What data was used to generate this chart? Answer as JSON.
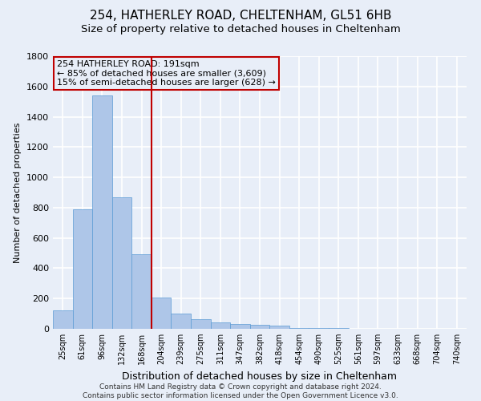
{
  "title1": "254, HATHERLEY ROAD, CHELTENHAM, GL51 6HB",
  "title2": "Size of property relative to detached houses in Cheltenham",
  "xlabel": "Distribution of detached houses by size in Cheltenham",
  "ylabel": "Number of detached properties",
  "categories": [
    "25sqm",
    "61sqm",
    "96sqm",
    "132sqm",
    "168sqm",
    "204sqm",
    "239sqm",
    "275sqm",
    "311sqm",
    "347sqm",
    "382sqm",
    "418sqm",
    "454sqm",
    "490sqm",
    "525sqm",
    "561sqm",
    "597sqm",
    "633sqm",
    "668sqm",
    "704sqm",
    "740sqm"
  ],
  "values": [
    120,
    790,
    1540,
    870,
    490,
    205,
    100,
    65,
    42,
    30,
    25,
    20,
    5,
    5,
    3,
    2,
    1,
    1,
    1,
    1,
    1
  ],
  "bar_color": "#aec6e8",
  "bar_edge_color": "#5b9bd5",
  "vline_x": 4.5,
  "vline_color": "#c00000",
  "annotation_text": "254 HATHERLEY ROAD: 191sqm\n← 85% of detached houses are smaller (3,609)\n15% of semi-detached houses are larger (628) →",
  "annotation_box_color": "#c00000",
  "ylim": [
    0,
    1800
  ],
  "yticks": [
    0,
    200,
    400,
    600,
    800,
    1000,
    1200,
    1400,
    1600,
    1800
  ],
  "footer_line1": "Contains HM Land Registry data © Crown copyright and database right 2024.",
  "footer_line2": "Contains public sector information licensed under the Open Government Licence v3.0.",
  "bg_color": "#e8eef8",
  "plot_bg_color": "#e8eef8",
  "grid_color": "#ffffff",
  "title1_fontsize": 11,
  "title2_fontsize": 9.5,
  "annotation_fontsize": 8,
  "ylabel_fontsize": 8,
  "xlabel_fontsize": 9,
  "xtick_fontsize": 7,
  "ytick_fontsize": 8,
  "footer_fontsize": 6.5
}
